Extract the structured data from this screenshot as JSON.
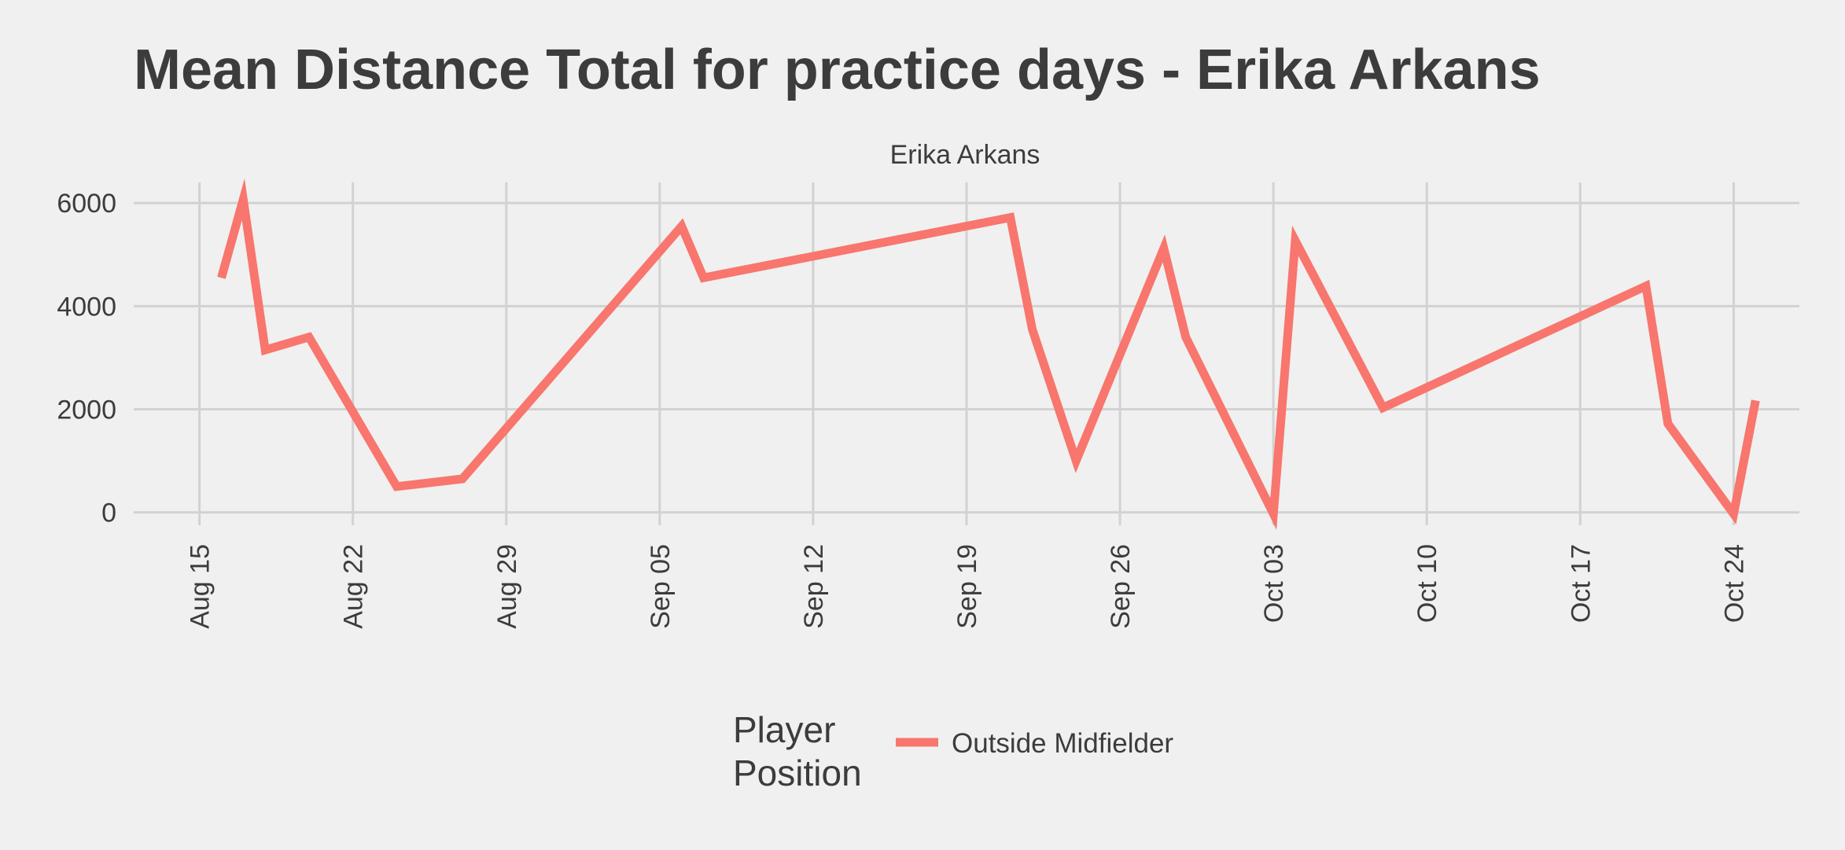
{
  "chart_data": {
    "type": "line",
    "title": "Mean Distance Total for practice days -  Erika Arkans",
    "facet_label": "Erika Arkans",
    "xlabel": "",
    "ylabel": "",
    "x_ticks": [
      "Aug 15",
      "Aug 22",
      "Aug 29",
      "Sep 05",
      "Sep 12",
      "Sep 19",
      "Sep 26",
      "Oct 03",
      "Oct 10",
      "Oct 17",
      "Oct 24"
    ],
    "y_ticks": [
      "0",
      "2000",
      "4000",
      "6000"
    ],
    "ylim": [
      -250,
      6400
    ],
    "xlim": [
      "2021-08-12",
      "2021-10-27"
    ],
    "grid": true,
    "legend": {
      "title_lines": [
        "Player",
        "Position"
      ],
      "placement": "bottom"
    },
    "series": [
      {
        "name": "Outside Midfielder",
        "color": "#f8766d",
        "points": [
          {
            "x": "2021-08-16",
            "y": 4550
          },
          {
            "x": "2021-08-17",
            "y": 6070
          },
          {
            "x": "2021-08-18",
            "y": 3150
          },
          {
            "x": "2021-08-20",
            "y": 3400
          },
          {
            "x": "2021-08-24",
            "y": 500
          },
          {
            "x": "2021-08-27",
            "y": 650
          },
          {
            "x": "2021-09-06",
            "y": 5550
          },
          {
            "x": "2021-09-07",
            "y": 4550
          },
          {
            "x": "2021-09-21",
            "y": 5720
          },
          {
            "x": "2021-09-22",
            "y": 3550
          },
          {
            "x": "2021-09-24",
            "y": 1000
          },
          {
            "x": "2021-09-28",
            "y": 5120
          },
          {
            "x": "2021-09-29",
            "y": 3400
          },
          {
            "x": "2021-10-03",
            "y": -30
          },
          {
            "x": "2021-10-04",
            "y": 5270
          },
          {
            "x": "2021-10-08",
            "y": 2030
          },
          {
            "x": "2021-10-20",
            "y": 4390
          },
          {
            "x": "2021-10-21",
            "y": 1720
          },
          {
            "x": "2021-10-24",
            "y": -30
          },
          {
            "x": "2021-10-25",
            "y": 2170
          }
        ]
      }
    ]
  }
}
